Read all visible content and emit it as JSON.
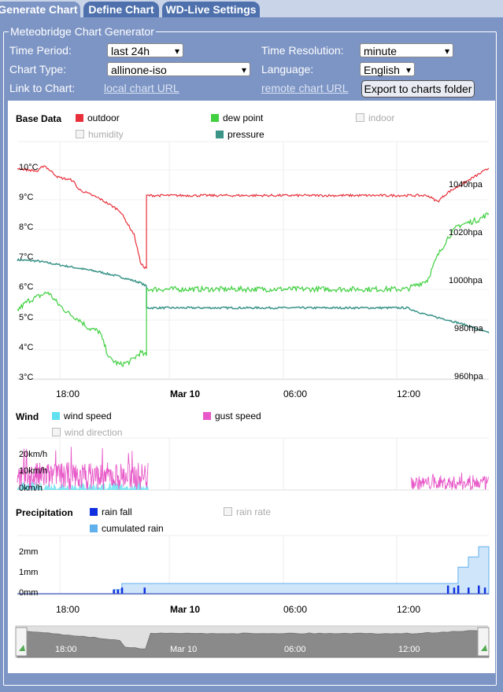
{
  "tabs": [
    {
      "label": "Generate Chart",
      "active": true
    },
    {
      "label": "Define Chart",
      "active": false
    },
    {
      "label": "WD-Live Settings",
      "active": false
    }
  ],
  "form": {
    "legend": "Meteobridge Chart Generator",
    "time_period_label": "Time Period:",
    "time_period_value": "last 24h",
    "time_resolution_label": "Time Resolution:",
    "time_resolution_value": "minute",
    "chart_type_label": "Chart Type:",
    "chart_type_value": "allinone-iso",
    "language_label": "Language:",
    "language_value": "English",
    "link_label": "Link to Chart:",
    "local_link": "local chart URL",
    "remote_link": "remote chart URL",
    "export_button": "Export to charts folder"
  },
  "colors": {
    "outdoor": "#e8303a",
    "dew_point": "#40d040",
    "pressure": "#3a9488",
    "wind_speed": "#62e0f0",
    "gust_speed": "#e858c8",
    "rain_fall": "#1030e0",
    "cumulated_rain": "#60b0ee"
  },
  "sections": {
    "base": {
      "title": "Base Data",
      "legend": {
        "outdoor": "outdoor",
        "dew_point": "dew point",
        "indoor": "indoor",
        "humidity": "humidity",
        "pressure": "pressure"
      }
    },
    "wind": {
      "title": "Wind",
      "legend": {
        "wind_speed": "wind speed",
        "gust_speed": "gust speed",
        "wind_direction": "wind direction"
      }
    },
    "precip": {
      "title": "Precipitation",
      "legend": {
        "rain_fall": "rain fall",
        "rain_rate": "rain rate",
        "cumulated_rain": "cumulated rain"
      }
    }
  },
  "x_ticks": {
    "t1": "18:00",
    "t2": "Mar 10",
    "t3": "06:00",
    "t4": "12:00"
  },
  "chart_data": [
    {
      "type": "line",
      "x_unit": "hours since chart start",
      "y_ticks_left": [
        "10°C",
        "9°C",
        "8°C",
        "7°C",
        "6°C",
        "5°C",
        "4°C",
        "3°C"
      ],
      "y_ticks_right": [
        "1040hpa",
        "1020hpa",
        "1000hpa",
        "980hpa",
        "960hpa"
      ],
      "ylim_temp": [
        2.7,
        10.3
      ],
      "ylim_pressure": [
        955,
        1045
      ],
      "series": [
        {
          "name": "outdoor",
          "unit": "°C",
          "x": [
            0,
            1,
            1.3,
            2,
            2.7,
            3,
            4,
            5,
            5.7,
            6,
            6.2,
            6.3,
            6.3,
            20,
            20.5,
            21,
            22,
            23
          ],
          "y": [
            10,
            9.9,
            10.1,
            9.7,
            9.6,
            9.3,
            9.0,
            8.6,
            7.8,
            6.9,
            6.7,
            6.7,
            9.1,
            9.1,
            8.9,
            9.2,
            9.6,
            10.0
          ]
        },
        {
          "name": "dew point",
          "unit": "°C",
          "x": [
            0,
            0.5,
            1.5,
            2,
            2.5,
            3,
            3.5,
            4,
            4.5,
            5,
            5.5,
            6,
            6.3,
            6.3,
            19,
            20,
            20.5,
            21,
            21.5,
            22,
            22.5,
            23
          ],
          "y": [
            5.3,
            5.6,
            5.9,
            5.5,
            5.2,
            5.0,
            4.7,
            4.6,
            3.7,
            3.5,
            3.6,
            3.9,
            3.8,
            6.0,
            6.0,
            6.3,
            7.1,
            7.7,
            8.1,
            8.2,
            8.3,
            8.5
          ]
        },
        {
          "name": "pressure",
          "unit": "hpa",
          "x": [
            0,
            1,
            2,
            3,
            4,
            5,
            6,
            6.3,
            6.3,
            19,
            20,
            21,
            22,
            23
          ],
          "y": [
            1010,
            1009.5,
            1008,
            1006.5,
            1005,
            1003,
            1000.5,
            999,
            990,
            990,
            987,
            985,
            982.5,
            979.5
          ]
        }
      ]
    },
    {
      "type": "line",
      "ylim": [
        0,
        30
      ],
      "y_ticks": [
        "20km/h",
        "10km/h",
        "0km/h"
      ],
      "series": [
        {
          "name": "gust speed",
          "unit": "km/h",
          "segments": [
            {
              "from": 0,
              "to": 6.4,
              "typical_max": 16,
              "peak": 25
            },
            {
              "from": 19.2,
              "to": 23,
              "typical_max": 8,
              "peak": 11
            }
          ]
        },
        {
          "name": "wind speed",
          "unit": "km/h",
          "segments": [
            {
              "from": 0,
              "to": 6.4,
              "typical": 3
            }
          ]
        }
      ]
    },
    {
      "type": "bar",
      "ylim": [
        0,
        2.6
      ],
      "y_ticks": [
        "2mm",
        "1mm",
        "0mm"
      ],
      "series": [
        {
          "name": "cumulated rain",
          "unit": "mm",
          "x": [
            0,
            4.7,
            5.1,
            21,
            21.5,
            22,
            22.5,
            23
          ],
          "y": [
            0,
            0.2,
            0.5,
            0.5,
            1.3,
            1.8,
            2.3,
            2.3
          ]
        },
        {
          "name": "rain fall",
          "unit": "mm",
          "x": [
            4.7,
            4.9,
            5.1,
            6.2,
            21,
            21.3,
            21.5,
            22,
            22.5,
            22.8
          ],
          "y": [
            0.2,
            0.2,
            0.3,
            0.3,
            0.4,
            0.3,
            0.4,
            0.3,
            0.4,
            0.3
          ]
        }
      ]
    }
  ],
  "navigator": {
    "ticks": {
      "t1": "18:00",
      "t2": "Mar 10",
      "t3": "06:00",
      "t4": "12:00"
    }
  }
}
